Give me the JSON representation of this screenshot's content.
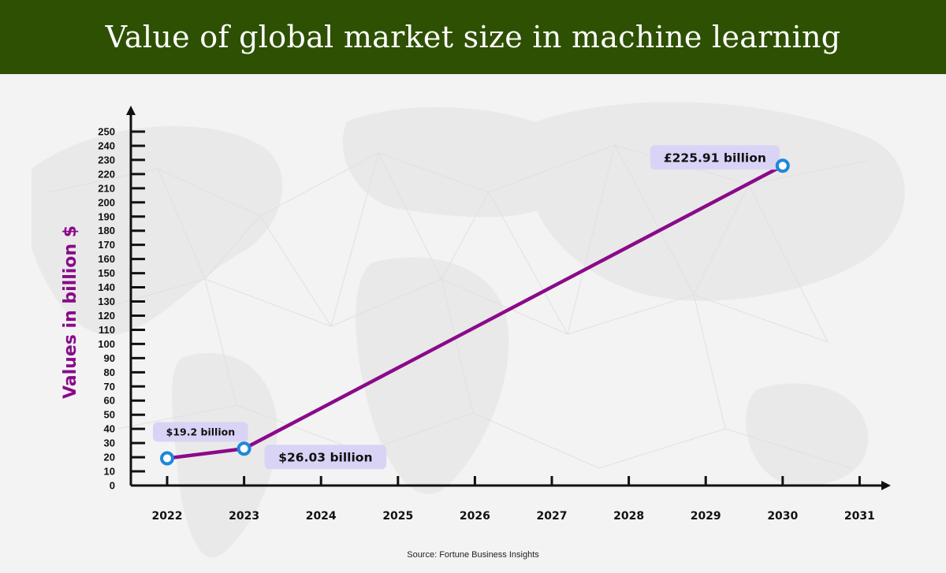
{
  "colors": {
    "header_bg": "#2e5002",
    "title_text": "#ffffff",
    "line": "#8a0a8a",
    "marker": "#1e88d8",
    "label_bg": "#d9d4f6",
    "ylabel": "#8a0a8a",
    "axis": "#111111"
  },
  "header": {
    "title": "Value of global market size in machine learning"
  },
  "source": "Source: Fortune Business Insights",
  "chart_data": {
    "type": "line",
    "title": "Value of global market size in machine learning",
    "xlabel": "",
    "ylabel": "Values in billion $",
    "ylim": [
      0,
      250
    ],
    "y_ticks": [
      0,
      10,
      20,
      30,
      40,
      50,
      60,
      70,
      80,
      90,
      100,
      110,
      120,
      130,
      140,
      150,
      160,
      170,
      180,
      190,
      200,
      210,
      220,
      230,
      240,
      250
    ],
    "x_ticks": [
      "2022",
      "2023",
      "2024",
      "2025",
      "2026",
      "2027",
      "2028",
      "2029",
      "2030",
      "2031"
    ],
    "grid": false,
    "series": [
      {
        "x": [
          2022,
          2023,
          2030
        ],
        "y": [
          19.2,
          26.03,
          225.91
        ],
        "point_labels": [
          "$19.2 billion",
          "$26.03 billion",
          "£225.91 billion"
        ]
      }
    ]
  }
}
